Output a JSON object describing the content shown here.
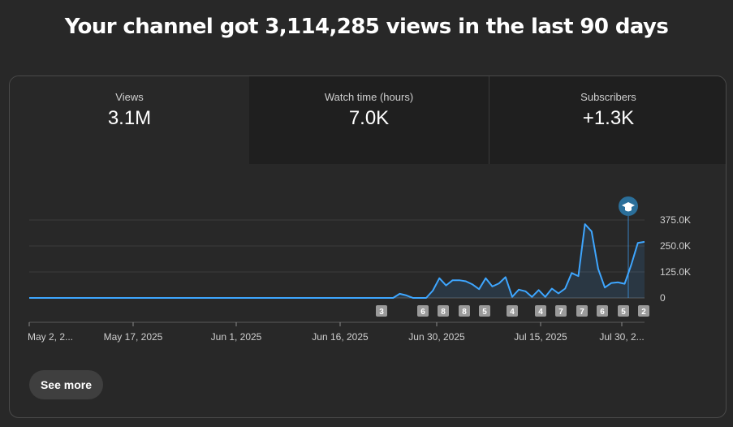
{
  "headline": "Your channel got 3,114,285 views in the last 90 days",
  "tabs": [
    {
      "label": "Views",
      "value": "3.1M"
    },
    {
      "label": "Watch time (hours)",
      "value": "7.0K"
    },
    {
      "label": "Subscribers",
      "value": "+1.3K"
    }
  ],
  "see_more_label": "See more",
  "colors": {
    "line": "#3ea6ff",
    "accent": "#3ea6ff"
  },
  "chart_data": {
    "type": "area",
    "y_ticks": [
      "0",
      "125.0K",
      "250.0K",
      "375.0K"
    ],
    "ylim": [
      0,
      375000
    ],
    "x_labels": [
      "May 2, 2...",
      "May 17, 2025",
      "Jun 1, 2025",
      "Jun 16, 2025",
      "Jun 30, 2025",
      "Jul 15, 2025",
      "Jul 30, 2..."
    ],
    "series": [
      {
        "values": [
          0,
          0,
          0,
          0,
          0,
          0,
          0,
          0,
          0,
          0,
          0,
          0,
          0,
          0,
          0,
          0,
          0,
          0,
          0,
          0,
          0,
          0,
          0,
          0,
          0,
          0,
          0,
          0,
          0,
          0,
          0,
          0,
          0,
          0,
          0,
          0,
          0,
          0,
          0,
          0,
          0,
          0,
          0,
          0,
          0,
          0,
          0,
          0,
          0,
          0,
          0,
          0,
          0,
          0,
          0,
          0,
          20000,
          12000,
          0,
          0,
          0,
          35000,
          95000,
          60000,
          85000,
          85000,
          80000,
          65000,
          42000,
          95000,
          55000,
          70000,
          100000,
          5000,
          40000,
          32000,
          5000,
          38000,
          5000,
          45000,
          22000,
          45000,
          120000,
          105000,
          355000,
          320000,
          140000,
          50000,
          72000,
          75000,
          68000,
          160000,
          265000,
          270000
        ]
      }
    ],
    "markers": [
      "3",
      "6",
      "8",
      "8",
      "5",
      "4",
      "4",
      "7",
      "7",
      "6",
      "5",
      "2"
    ],
    "grid": true,
    "milestone_icon": "graduation-cap-icon"
  }
}
